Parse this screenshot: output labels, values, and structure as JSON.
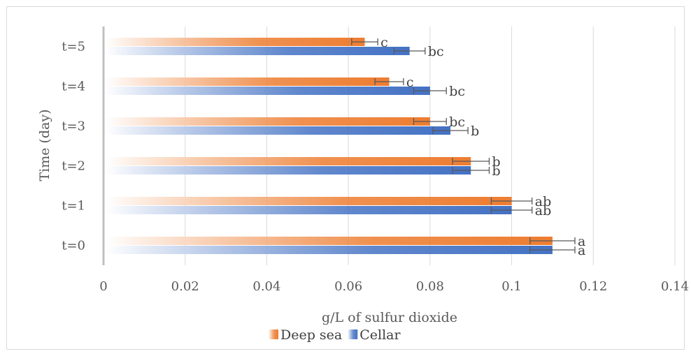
{
  "chart_data": {
    "type": "bar",
    "orientation": "horizontal",
    "categories": [
      "t=0",
      "t=1",
      "t=2",
      "t=3",
      "t=4",
      "t=5"
    ],
    "series": [
      {
        "name": "Deep sea",
        "values": [
          0.11,
          0.1,
          0.09,
          0.08,
          0.07,
          0.064
        ],
        "errors": [
          0.0055,
          0.005,
          0.0045,
          0.004,
          0.0035,
          0.0032
        ],
        "labels": [
          "a",
          "ab",
          "b",
          "bc",
          "c",
          "c"
        ],
        "color": "#ed7d31"
      },
      {
        "name": "Cellar",
        "values": [
          0.11,
          0.1,
          0.09,
          0.085,
          0.08,
          0.075
        ],
        "errors": [
          0.0055,
          0.005,
          0.0045,
          0.0043,
          0.004,
          0.0038
        ],
        "labels": [
          "a",
          "ab",
          "b",
          "b",
          "bc",
          "bc"
        ],
        "color": "#4472c4"
      }
    ],
    "xlabel": "g/L of sulfur dioxide",
    "ylabel": "Time (day)",
    "xlim": [
      0,
      0.14
    ],
    "xticks": [
      "0",
      "0.02",
      "0.04",
      "0.06",
      "0.08",
      "0.1",
      "0.12",
      "0.14"
    ],
    "grid": true,
    "legend": "bottom",
    "gradient_fill": true
  }
}
